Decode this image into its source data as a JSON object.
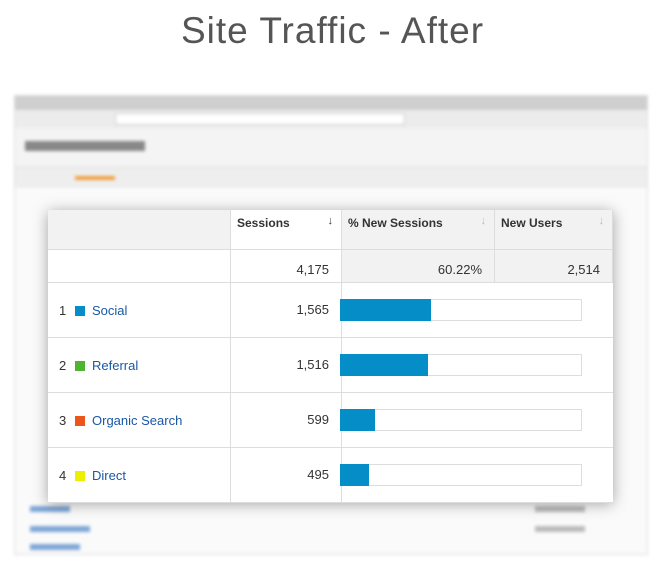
{
  "header": {
    "title": "Site Traffic - After"
  },
  "table": {
    "columns": [
      "Sessions",
      "% New Sessions",
      "New Users"
    ],
    "totals": [
      "4,175",
      "60.22%",
      "2,514"
    ],
    "total_sessions": 4175,
    "rows": [
      {
        "rank": "1",
        "name": "Social",
        "color": "#058dc7"
      },
      {
        "rank": "2",
        "name": "Referral",
        "color": "#50b432"
      },
      {
        "rank": "3",
        "name": "Organic Search",
        "color": "#ed561b"
      },
      {
        "rank": "4",
        "name": "Direct",
        "color": "#edef00"
      }
    ],
    "sessions": {
      "values": [
        1565,
        1516,
        599,
        495
      ],
      "value_labels": [
        "1,565",
        "1,516",
        "599",
        "495"
      ],
      "bar_color": "#058dc7"
    }
  }
}
